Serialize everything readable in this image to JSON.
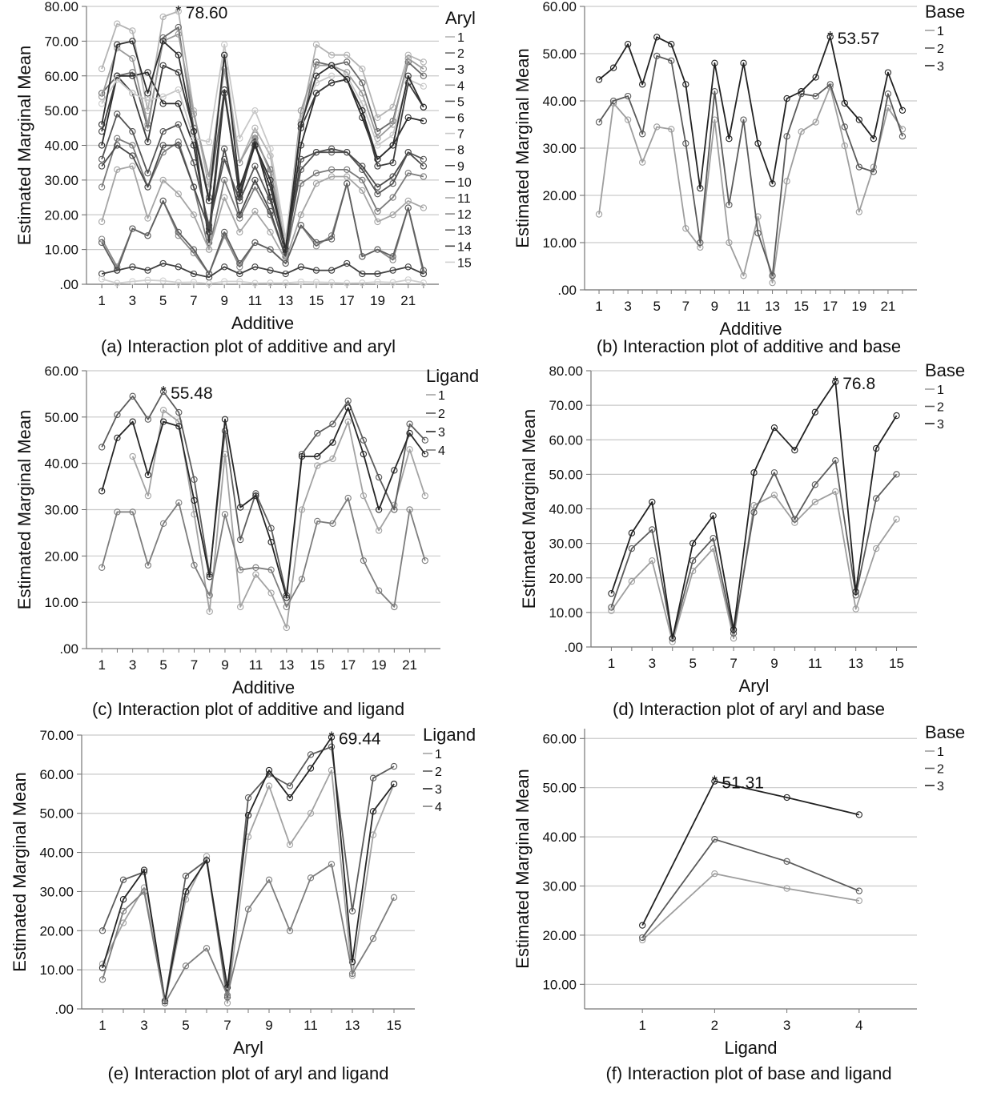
{
  "chart_data": [
    {
      "id": "a",
      "type": "line",
      "caption": "(a) Interaction plot of additive and aryl",
      "xlabel": "Additive",
      "ylabel": "Estimated Marginal Mean",
      "ylim": [
        0,
        80
      ],
      "yticks": [
        ".00",
        "10.00",
        "20.00",
        "30.00",
        "40.00",
        "50.00",
        "60.00",
        "70.00",
        "80.00"
      ],
      "xlim": [
        0,
        23
      ],
      "xticks": [
        1,
        3,
        5,
        7,
        9,
        11,
        13,
        15,
        17,
        19,
        21
      ],
      "legend_title": "Aryl",
      "series_colors": [
        "#b4b4b4",
        "#6a6a6a",
        "#2b2b2b",
        "#9a9a9a",
        "#555555",
        "#3d3d3d",
        "#c8c8c8",
        "#7a7a7a",
        "#4a4a4a",
        "#2f2f2f",
        "#a5a5a5",
        "#888888",
        "#5f5f5f",
        "#404040",
        "#d0d0d0"
      ],
      "series": [
        {
          "name": "1",
          "values": [
            62,
            75,
            73,
            50,
            77,
            78.6,
            50,
            28,
            66,
            35,
            45,
            37,
            10,
            47,
            69,
            66,
            66,
            62,
            48,
            51,
            66,
            64
          ]
        },
        {
          "name": "2",
          "values": [
            55,
            60,
            61,
            45,
            71,
            74,
            45,
            25,
            56,
            27,
            42,
            33,
            10,
            45,
            64,
            63,
            64,
            58,
            44,
            47,
            64,
            60
          ]
        },
        {
          "name": "3",
          "values": [
            40,
            60,
            60,
            61,
            52,
            52,
            40,
            15,
            56,
            25,
            41,
            25,
            9,
            40,
            55,
            58,
            59,
            48,
            36,
            40,
            48,
            47
          ]
        },
        {
          "name": "4",
          "values": [
            54,
            68,
            65,
            46,
            70,
            72,
            49,
            31,
            62,
            35,
            43,
            32,
            11,
            50,
            63,
            63,
            61,
            55,
            42,
            46,
            65,
            62
          ]
        },
        {
          "name": "5",
          "values": [
            36,
            49,
            44,
            32,
            44,
            46,
            35,
            17,
            36,
            24,
            34,
            24,
            10,
            33,
            38,
            38,
            38,
            33,
            26,
            29,
            38,
            36
          ]
        },
        {
          "name": "6",
          "values": [
            44,
            60,
            55,
            41,
            63,
            61,
            44,
            12,
            55,
            26,
            40,
            28,
            10,
            45,
            55,
            58,
            59,
            50,
            34,
            35,
            58,
            51
          ]
        },
        {
          "name": "7",
          "values": [
            52,
            59,
            55,
            53,
            54,
            56,
            42,
            41,
            69,
            42,
            50,
            39,
            13,
            47,
            58,
            60,
            60,
            52,
            40,
            43,
            59,
            57
          ]
        },
        {
          "name": "8",
          "values": [
            28,
            42,
            40,
            28,
            38,
            41,
            28,
            10,
            30,
            19,
            28,
            20,
            8,
            29,
            32,
            33,
            33,
            30,
            21,
            25,
            32,
            31
          ]
        },
        {
          "name": "9",
          "values": [
            34,
            40,
            37,
            28,
            40,
            40,
            28,
            16,
            39,
            20,
            30,
            21,
            8,
            36,
            38,
            39,
            38,
            34,
            28,
            31,
            38,
            34
          ]
        },
        {
          "name": "10",
          "values": [
            46,
            69,
            70,
            55,
            70,
            66,
            44,
            24,
            66,
            28,
            40,
            30,
            10,
            46,
            60,
            63,
            59,
            50,
            36,
            40,
            60,
            51
          ]
        },
        {
          "name": "11",
          "values": [
            18,
            33,
            34,
            19,
            30,
            26,
            20,
            10,
            25,
            15,
            21,
            15,
            7,
            20,
            29,
            31,
            31,
            27,
            18,
            20,
            24,
            22
          ]
        },
        {
          "name": "12",
          "values": [
            13,
            5,
            16,
            14,
            24,
            14,
            9,
            3,
            14,
            5,
            12,
            10,
            6,
            17,
            11,
            14,
            29,
            8,
            10,
            7,
            22,
            3
          ]
        },
        {
          "name": "13",
          "values": [
            12,
            4,
            16,
            14,
            24,
            15,
            10,
            3,
            15,
            6,
            12,
            10,
            6,
            17,
            12,
            13,
            29,
            8,
            10,
            8,
            22,
            4
          ]
        },
        {
          "name": "14",
          "values": [
            3,
            4,
            5,
            4,
            6,
            5,
            3,
            2,
            5,
            3,
            5,
            4,
            3,
            5,
            4,
            4,
            6,
            3,
            3,
            4,
            5,
            3
          ]
        },
        {
          "name": "15",
          "values": [
            1.5,
            0.3,
            0.8,
            1.2,
            1.0,
            0.5,
            0.6,
            0.2,
            0.8,
            0.8,
            0.3,
            0.4,
            0.4,
            0.7,
            0.6,
            0.5,
            0.3,
            0.4,
            0.7,
            0.5,
            1.3,
            0.4
          ]
        }
      ],
      "annotation": {
        "series": "1",
        "x": 6,
        "y": 78.6,
        "label": "78.60"
      }
    },
    {
      "id": "b",
      "type": "line",
      "caption": "(b) Interaction plot of additive and base",
      "xlabel": "Additive",
      "ylabel": "Estimated Marginal Mean",
      "ylim": [
        0,
        60
      ],
      "yticks": [
        ".00",
        "10.00",
        "20.00",
        "30.00",
        "40.00",
        "50.00",
        "60.00"
      ],
      "xlim": [
        0,
        23
      ],
      "xticks": [
        1,
        3,
        5,
        7,
        9,
        11,
        13,
        15,
        17,
        19,
        21
      ],
      "legend_title": "Base",
      "series_colors": [
        "#9e9e9e",
        "#5a5a5a",
        "#222222"
      ],
      "series": [
        {
          "name": "1",
          "values": [
            16,
            39.5,
            36,
            27,
            34.5,
            34,
            13,
            9,
            36,
            10,
            3,
            15.5,
            1.5,
            23,
            33.5,
            35.5,
            43,
            30.5,
            16.5,
            26,
            38.5,
            34
          ]
        },
        {
          "name": "2",
          "values": [
            35.5,
            40,
            41,
            33,
            49.5,
            48.5,
            31,
            10,
            42,
            18,
            36,
            12,
            3,
            32.5,
            41.5,
            41,
            43.5,
            34.5,
            26,
            25,
            41.5,
            32.5
          ]
        },
        {
          "name": "3",
          "values": [
            44.5,
            47,
            52,
            43.5,
            53.5,
            52,
            43.5,
            21.5,
            48,
            32,
            48,
            31,
            22.5,
            40.5,
            42,
            45,
            53.57,
            39.5,
            36,
            32,
            46,
            38
          ]
        }
      ],
      "annotation": {
        "series": "3",
        "x": 17,
        "y": 53.57,
        "label": "53.57"
      }
    },
    {
      "id": "c",
      "type": "line",
      "caption": "(c) Interaction plot of additive and ligand",
      "xlabel": "Additive",
      "ylabel": "Estimated Marginal Mean",
      "ylim": [
        0,
        60
      ],
      "yticks": [
        ".00",
        "10.00",
        "20.00",
        "30.00",
        "40.00",
        "50.00",
        "60.00"
      ],
      "xlim": [
        0,
        23
      ],
      "xticks": [
        1,
        3,
        5,
        7,
        9,
        11,
        13,
        15,
        17,
        19,
        21
      ],
      "legend_title": "Ligand",
      "series_colors": [
        "#a3a3a3",
        "#5c5c5c",
        "#262626",
        "#7d7d7d"
      ],
      "series": [
        {
          "name": "1",
          "values": [
            null,
            null,
            41.5,
            33,
            51.5,
            49,
            29,
            8,
            42,
            9,
            16,
            12,
            4.5,
            30,
            39.5,
            41,
            49,
            33,
            25.5,
            31,
            43,
            33
          ]
        },
        {
          "name": "2",
          "values": [
            43.5,
            50.5,
            54.5,
            49.5,
            55.48,
            51,
            36.5,
            16,
            47,
            23.5,
            33.5,
            26,
            11.5,
            42,
            46.5,
            48.5,
            53.5,
            45,
            37,
            30,
            48.5,
            45
          ]
        },
        {
          "name": "3",
          "values": [
            34,
            45.5,
            49,
            37.5,
            49,
            48,
            32,
            15.5,
            49.5,
            30.5,
            33,
            23,
            11,
            41.5,
            41.5,
            44.5,
            52,
            42,
            30,
            38.5,
            46.5,
            42
          ]
        },
        {
          "name": "4",
          "values": [
            17.5,
            29.5,
            29.5,
            18,
            27,
            31.5,
            18,
            11.5,
            29,
            17,
            17.5,
            17,
            9,
            15,
            27.5,
            27,
            32.5,
            19,
            12.5,
            9,
            30,
            19
          ]
        }
      ],
      "annotation": {
        "series": "2",
        "x": 5,
        "y": 55.48,
        "label": "55.48"
      }
    },
    {
      "id": "d",
      "type": "line",
      "caption": "(d) Interaction plot of aryl and base",
      "xlabel": "Aryl",
      "ylabel": "Estimated Marginal Mean",
      "ylim": [
        0,
        80
      ],
      "yticks": [
        ".00",
        "10.00",
        "20.00",
        "30.00",
        "40.00",
        "50.00",
        "60.00",
        "70.00",
        "80.00"
      ],
      "xlim": [
        0,
        16
      ],
      "xticks": [
        1,
        3,
        5,
        7,
        9,
        11,
        13,
        15
      ],
      "legend_title": "Base",
      "series_colors": [
        "#9e9e9e",
        "#5a5a5a",
        "#222222"
      ],
      "series": [
        {
          "name": "1",
          "values": [
            10.5,
            19,
            25,
            1.5,
            22,
            28.5,
            2.5,
            41,
            44,
            36,
            42,
            45,
            11,
            28.5,
            37
          ]
        },
        {
          "name": "2",
          "values": [
            11.5,
            28.5,
            34,
            2.5,
            25,
            31.5,
            4,
            39,
            50.5,
            37,
            47,
            54,
            15,
            43,
            50
          ]
        },
        {
          "name": "3",
          "values": [
            15.5,
            33,
            42,
            2.5,
            30,
            38,
            5,
            50.5,
            63.5,
            57,
            68,
            76.8,
            16,
            57.5,
            67
          ]
        }
      ],
      "annotation": {
        "series": "3",
        "x": 12,
        "y": 76.8,
        "label": "76.8"
      }
    },
    {
      "id": "e",
      "type": "line",
      "caption": "(e) Interaction plot of aryl and ligand",
      "xlabel": "Aryl",
      "ylabel": "Estimated Marginal Mean",
      "ylim": [
        0,
        70
      ],
      "yticks": [
        ".00",
        "10.00",
        "20.00",
        "30.00",
        "40.00",
        "50.00",
        "60.00",
        "70.00"
      ],
      "xlim": [
        0,
        16
      ],
      "xticks": [
        1,
        3,
        5,
        7,
        9,
        11,
        13,
        15
      ],
      "legend_title": "Ligand",
      "series_colors": [
        "#a3a3a3",
        "#5c5c5c",
        "#262626",
        "#7d7d7d"
      ],
      "series": [
        {
          "name": "1",
          "values": [
            11.5,
            22,
            31,
            1.5,
            28,
            39,
            1.5,
            44,
            57,
            42,
            50,
            61,
            8.5,
            44.5,
            57.5
          ]
        },
        {
          "name": "2",
          "values": [
            20,
            33,
            35,
            2,
            34,
            38,
            3,
            54,
            60,
            57,
            65,
            67,
            25,
            59,
            62
          ]
        },
        {
          "name": "3",
          "values": [
            10.5,
            28,
            35.5,
            2,
            30,
            38,
            5.5,
            49.5,
            61,
            54,
            61.5,
            69.44,
            12,
            50.5,
            57.5
          ]
        },
        {
          "name": "4",
          "values": [
            7.5,
            25,
            30,
            1.5,
            11,
            15.5,
            3.5,
            25.5,
            33,
            20,
            33.5,
            37,
            9,
            18,
            28.5
          ]
        }
      ],
      "annotation": {
        "series": "3",
        "x": 12,
        "y": 69.44,
        "label": "69.44"
      }
    },
    {
      "id": "f",
      "type": "line",
      "caption": "(f) Interaction plot of base and ligand",
      "xlabel": "Ligand",
      "ylabel": "Estimated Marginal Mean",
      "ylim": [
        5,
        62
      ],
      "yticks_values": [
        10,
        20,
        30,
        40,
        50,
        60
      ],
      "yticks": [
        "10.00",
        "20.00",
        "30.00",
        "40.00",
        "50.00",
        "60.00"
      ],
      "xlim": [
        0.2,
        4.8
      ],
      "xticks": [
        1,
        2,
        3,
        4
      ],
      "legend_title": "Base",
      "series_colors": [
        "#9e9e9e",
        "#5a5a5a",
        "#222222"
      ],
      "series": [
        {
          "name": "1",
          "values": [
            19,
            32.5,
            29.5,
            27
          ]
        },
        {
          "name": "2",
          "values": [
            19.5,
            39.5,
            35,
            29
          ]
        },
        {
          "name": "3",
          "values": [
            22,
            51.31,
            48,
            44.5
          ]
        }
      ],
      "annotation": {
        "series": "3",
        "x": 2,
        "y": 51.31,
        "label": "51.31"
      }
    }
  ]
}
